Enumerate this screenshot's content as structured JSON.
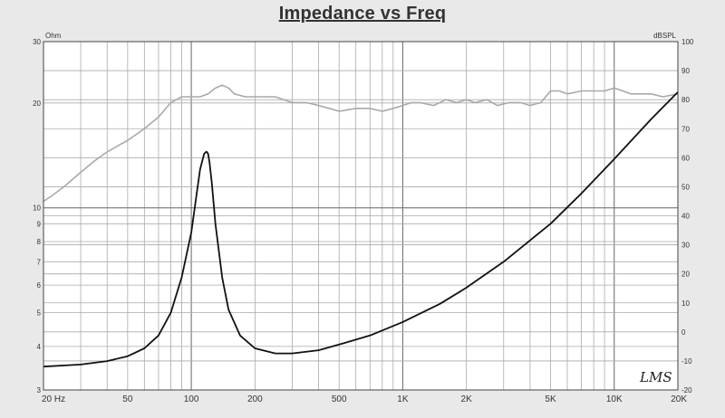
{
  "chart_data": {
    "type": "line",
    "title": "Impedance vs Freq",
    "x_scale": "log",
    "xlim": [
      20,
      20000
    ],
    "x_tick_labels": [
      {
        "value": 20,
        "label": "20 Hz"
      },
      {
        "value": 50,
        "label": "50"
      },
      {
        "value": 100,
        "label": "100"
      },
      {
        "value": 200,
        "label": "200"
      },
      {
        "value": 500,
        "label": "500"
      },
      {
        "value": 1000,
        "label": "1K"
      },
      {
        "value": 2000,
        "label": "2K"
      },
      {
        "value": 5000,
        "label": "5K"
      },
      {
        "value": 10000,
        "label": "10K"
      },
      {
        "value": 20000,
        "label": "20K"
      }
    ],
    "y_left": {
      "unit": "Ohm",
      "scale": "log",
      "lim": [
        3,
        30
      ],
      "tick_labels": [
        "3",
        "4",
        "5",
        "6",
        "7",
        "8",
        "9",
        "10",
        "20",
        "30"
      ]
    },
    "y_right": {
      "unit": "dBSPL",
      "scale": "linear",
      "lim": [
        -20,
        100
      ],
      "tick_labels": [
        "-20",
        "-10",
        "0",
        "10",
        "20",
        "30",
        "40",
        "50",
        "60",
        "70",
        "80",
        "90",
        "100"
      ]
    },
    "grid": true,
    "series": [
      {
        "axis": "left",
        "color": "#111111",
        "x": [
          20,
          30,
          40,
          50,
          60,
          70,
          80,
          90,
          100,
          105,
          110,
          115,
          118,
          120,
          122,
          125,
          130,
          140,
          150,
          170,
          200,
          250,
          300,
          400,
          500,
          700,
          1000,
          1500,
          2000,
          3000,
          5000,
          7000,
          10000,
          15000,
          20000
        ],
        "y": [
          3.5,
          3.55,
          3.63,
          3.75,
          3.95,
          4.3,
          5.0,
          6.3,
          8.5,
          10.5,
          12.9,
          14.3,
          14.5,
          14.3,
          13.5,
          11.8,
          9.0,
          6.3,
          5.1,
          4.3,
          3.95,
          3.82,
          3.82,
          3.9,
          4.05,
          4.3,
          4.7,
          5.3,
          5.9,
          7.0,
          9.0,
          11.0,
          13.8,
          18.0,
          21.5
        ]
      },
      {
        "axis": "right",
        "color": "#a9a9a9",
        "x": [
          20,
          22,
          25,
          30,
          35,
          40,
          50,
          60,
          70,
          80,
          90,
          100,
          110,
          120,
          130,
          140,
          150,
          160,
          180,
          200,
          250,
          300,
          350,
          400,
          450,
          500,
          600,
          700,
          800,
          900,
          1000,
          1100,
          1200,
          1400,
          1600,
          1800,
          2000,
          2200,
          2500,
          2800,
          3200,
          3600,
          4000,
          4500,
          5000,
          5500,
          6000,
          7000,
          8000,
          9000,
          10000,
          11000,
          12000,
          13000,
          15000,
          17000,
          20000
        ],
        "y": [
          45,
          47,
          50,
          55,
          59,
          62,
          66,
          70,
          74,
          79,
          81,
          81,
          81,
          82,
          84,
          85,
          84,
          82,
          81,
          81,
          81,
          79,
          79,
          78,
          77,
          76,
          77,
          77,
          76,
          77,
          78,
          79,
          79,
          78,
          80,
          79,
          80,
          79,
          80,
          78,
          79,
          79,
          78,
          79,
          83,
          83,
          82,
          83,
          83,
          83,
          84,
          83,
          82,
          82,
          82,
          81,
          82
        ]
      }
    ]
  },
  "watermark": "LMS"
}
